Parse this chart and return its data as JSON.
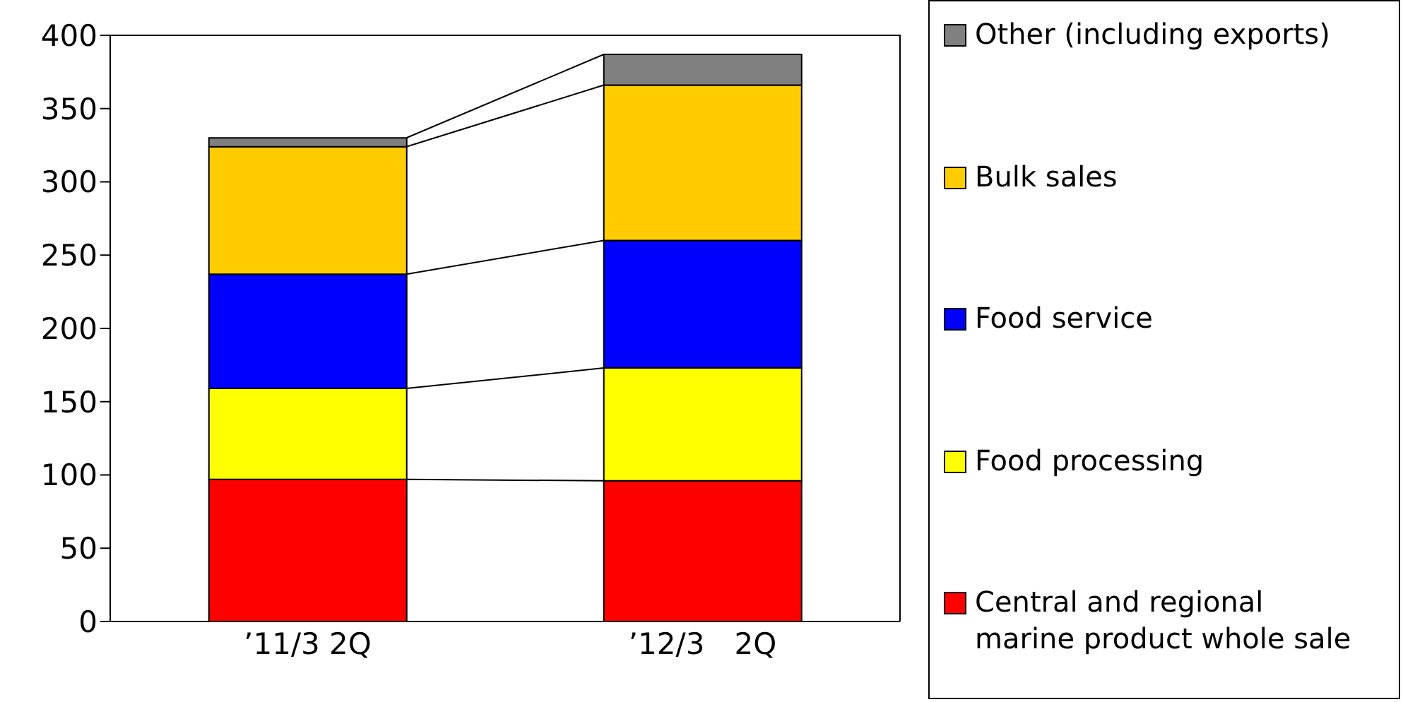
{
  "chart_data": {
    "type": "bar",
    "stacked": true,
    "categories": [
      "’11/3 2Q",
      "’12/3　2Q"
    ],
    "series": [
      {
        "name": "Central and regional marine product whole sale",
        "color": "#ff0000",
        "values": [
          97,
          96
        ]
      },
      {
        "name": "Food processing",
        "color": "#ffff00",
        "values": [
          62,
          77
        ]
      },
      {
        "name": "Food service",
        "color": "#0000ff",
        "values": [
          78,
          87
        ]
      },
      {
        "name": "Bulk sales",
        "color": "#ffcc00",
        "values": [
          87,
          106
        ]
      },
      {
        "name": "Other (including exports)",
        "color": "#808080",
        "values": [
          6,
          21
        ]
      }
    ],
    "ylim": [
      0,
      400
    ],
    "yticks": [
      0,
      50,
      100,
      150,
      200,
      250,
      300,
      350,
      400
    ],
    "legend": "right"
  }
}
